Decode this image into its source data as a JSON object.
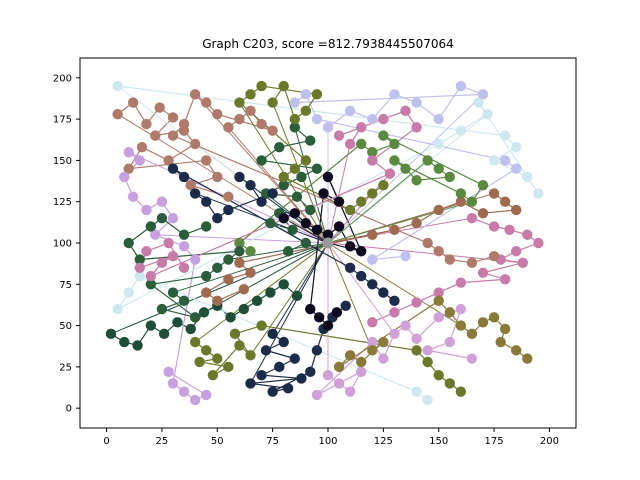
{
  "chart_data": {
    "type": "scatter",
    "title": "Graph C203, score =812.7938445507064",
    "xlabel": "",
    "ylabel": "",
    "xlim": [
      -12,
      212
    ],
    "ylim": [
      -12,
      212
    ],
    "x_ticks": [
      "0",
      "25",
      "50",
      "75",
      "100",
      "125",
      "150",
      "175",
      "200"
    ],
    "y_ticks": [
      "0",
      "25",
      "50",
      "75",
      "100",
      "125",
      "150",
      "175",
      "200"
    ],
    "grid": false,
    "legend": "none",
    "hub": {
      "x": 100,
      "y": 100,
      "color": "#999999"
    },
    "palette": [
      "#cfe8ef",
      "#c7a0e0",
      "#b07a6a",
      "#2a5e3a",
      "#6b7a2a",
      "#1c2b4a",
      "#c87aa8",
      "#0f0a20",
      "#a06a50",
      "#1e4d3a",
      "#c0c0ee",
      "#d0a0d8",
      "#8a7a3a",
      "#5a8a40"
    ],
    "series": [
      {
        "name": "",
        "color": "#2a5e3a",
        "points": [
          [
            85,
            170
          ],
          [
            92,
            162
          ],
          [
            78,
            158
          ],
          [
            70,
            150
          ],
          [
            95,
            145
          ],
          [
            88,
            140
          ],
          [
            80,
            135
          ],
          [
            72,
            130
          ],
          [
            86,
            128
          ],
          [
            92,
            120
          ],
          [
            78,
            118
          ],
          [
            84,
            108
          ],
          [
            74,
            112
          ],
          [
            90,
            100
          ],
          [
            82,
            95
          ]
        ]
      },
      {
        "name": "",
        "color": "#1c2b4a",
        "points": [
          [
            75,
            45
          ],
          [
            80,
            40
          ],
          [
            72,
            35
          ],
          [
            85,
            30
          ],
          [
            78,
            25
          ],
          [
            70,
            20
          ],
          [
            88,
            18
          ],
          [
            65,
            15
          ],
          [
            82,
            12
          ],
          [
            75,
            10
          ],
          [
            92,
            22
          ],
          [
            95,
            35
          ],
          [
            98,
            48
          ],
          [
            102,
            55
          ],
          [
            108,
            62
          ]
        ]
      },
      {
        "name": "",
        "color": "#c87aa8",
        "points": [
          [
            165,
            115
          ],
          [
            175,
            110
          ],
          [
            182,
            108
          ],
          [
            190,
            105
          ],
          [
            195,
            100
          ],
          [
            185,
            95
          ],
          [
            178,
            90
          ],
          [
            188,
            88
          ],
          [
            170,
            82
          ],
          [
            180,
            78
          ],
          [
            160,
            76
          ],
          [
            150,
            70
          ],
          [
            140,
            64
          ],
          [
            130,
            58
          ],
          [
            120,
            52
          ]
        ]
      },
      {
        "name": "",
        "color": "#b07a6a",
        "points": [
          [
            5,
            178
          ],
          [
            12,
            185
          ],
          [
            18,
            172
          ],
          [
            24,
            182
          ],
          [
            30,
            176
          ],
          [
            22,
            165
          ],
          [
            35,
            168
          ],
          [
            40,
            160
          ],
          [
            28,
            150
          ],
          [
            16,
            158
          ],
          [
            10,
            145
          ],
          [
            45,
            150
          ],
          [
            50,
            140
          ],
          [
            38,
            135
          ],
          [
            55,
            128
          ]
        ]
      },
      {
        "name": "",
        "color": "#6b7a2a",
        "points": [
          [
            40,
            40
          ],
          [
            45,
            35
          ],
          [
            50,
            30
          ],
          [
            42,
            28
          ],
          [
            55,
            25
          ],
          [
            48,
            20
          ],
          [
            60,
            38
          ],
          [
            65,
            32
          ],
          [
            58,
            45
          ],
          [
            70,
            50
          ],
          [
            140,
            35
          ],
          [
            145,
            28
          ],
          [
            150,
            20
          ],
          [
            155,
            15
          ],
          [
            160,
            10
          ]
        ]
      },
      {
        "name": "",
        "color": "#1e4d3a",
        "points": [
          [
            2,
            45
          ],
          [
            8,
            40
          ],
          [
            14,
            38
          ],
          [
            20,
            50
          ],
          [
            26,
            45
          ],
          [
            32,
            52
          ],
          [
            38,
            48
          ],
          [
            44,
            58
          ],
          [
            50,
            62
          ],
          [
            56,
            55
          ],
          [
            62,
            60
          ],
          [
            68,
            65
          ],
          [
            74,
            70
          ],
          [
            80,
            75
          ],
          [
            86,
            68
          ]
        ]
      },
      {
        "name": "",
        "color": "#c7a0e0",
        "points": [
          [
            10,
            155
          ],
          [
            15,
            150
          ],
          [
            8,
            140
          ],
          [
            12,
            128
          ],
          [
            18,
            120
          ],
          [
            25,
            125
          ],
          [
            30,
            115
          ],
          [
            22,
            105
          ],
          [
            35,
            98
          ],
          [
            40,
            90
          ],
          [
            30,
            15
          ],
          [
            35,
            10
          ],
          [
            40,
            5
          ],
          [
            45,
            8
          ],
          [
            28,
            22
          ]
        ]
      },
      {
        "name": "",
        "color": "#0f0a20",
        "points": [
          [
            80,
            115
          ],
          [
            85,
            118
          ],
          [
            90,
            112
          ],
          [
            95,
            108
          ],
          [
            100,
            105
          ],
          [
            105,
            110
          ],
          [
            110,
            98
          ],
          [
            115,
            95
          ],
          [
            100,
            140
          ],
          [
            105,
            125
          ],
          [
            98,
            130
          ],
          [
            92,
            60
          ],
          [
            96,
            55
          ],
          [
            100,
            50
          ],
          [
            104,
            58
          ]
        ]
      },
      {
        "name": "",
        "color": "#cfe8ef",
        "points": [
          [
            5,
            195
          ],
          [
            180,
            165
          ],
          [
            185,
            158
          ],
          [
            175,
            150
          ],
          [
            190,
            140
          ],
          [
            195,
            130
          ],
          [
            168,
            185
          ],
          [
            172,
            178
          ],
          [
            160,
            168
          ],
          [
            150,
            160
          ],
          [
            5,
            60
          ],
          [
            10,
            70
          ],
          [
            15,
            80
          ],
          [
            140,
            10
          ],
          [
            145,
            5
          ]
        ]
      },
      {
        "name": "",
        "color": "#a06a50",
        "points": [
          [
            175,
            130
          ],
          [
            180,
            125
          ],
          [
            185,
            120
          ],
          [
            170,
            118
          ],
          [
            160,
            125
          ],
          [
            150,
            120
          ],
          [
            140,
            112
          ],
          [
            130,
            108
          ],
          [
            120,
            105
          ],
          [
            60,
            88
          ],
          [
            65,
            82
          ],
          [
            55,
            78
          ],
          [
            45,
            70
          ],
          [
            50,
            65
          ],
          [
            62,
            72
          ]
        ]
      },
      {
        "name": "",
        "color": "#c0c0ee",
        "points": [
          [
            100,
            170
          ],
          [
            110,
            180
          ],
          [
            120,
            175
          ],
          [
            130,
            190
          ],
          [
            140,
            185
          ],
          [
            150,
            175
          ],
          [
            160,
            195
          ],
          [
            170,
            190
          ],
          [
            85,
            185
          ],
          [
            90,
            190
          ],
          [
            95,
            175
          ],
          [
            180,
            150
          ],
          [
            185,
            145
          ],
          [
            120,
            90
          ],
          [
            135,
            92
          ]
        ]
      },
      {
        "name": "",
        "color": "#d0a0d8",
        "points": [
          [
            100,
            20
          ],
          [
            105,
            15
          ],
          [
            110,
            10
          ],
          [
            115,
            22
          ],
          [
            95,
            8
          ],
          [
            120,
            40
          ],
          [
            125,
            30
          ],
          [
            130,
            45
          ],
          [
            135,
            50
          ],
          [
            140,
            42
          ],
          [
            150,
            55
          ],
          [
            160,
            60
          ],
          [
            155,
            40
          ],
          [
            145,
            35
          ],
          [
            165,
            30
          ]
        ]
      },
      {
        "name": "",
        "color": "#8a7a3a",
        "points": [
          [
            120,
            35
          ],
          [
            125,
            40
          ],
          [
            115,
            28
          ],
          [
            110,
            32
          ],
          [
            105,
            25
          ],
          [
            150,
            65
          ],
          [
            155,
            58
          ],
          [
            160,
            50
          ],
          [
            165,
            45
          ],
          [
            170,
            52
          ],
          [
            175,
            55
          ],
          [
            180,
            48
          ],
          [
            178,
            40
          ],
          [
            185,
            35
          ],
          [
            190,
            30
          ]
        ]
      },
      {
        "name": "",
        "color": "#5a8a40",
        "points": [
          [
            145,
            150
          ],
          [
            150,
            145
          ],
          [
            155,
            140
          ],
          [
            140,
            138
          ],
          [
            135,
            145
          ],
          [
            130,
            150
          ],
          [
            160,
            130
          ],
          [
            165,
            125
          ],
          [
            170,
            135
          ],
          [
            125,
            165
          ],
          [
            130,
            160
          ],
          [
            120,
            155
          ],
          [
            115,
            160
          ],
          [
            60,
            100
          ],
          [
            65,
            95
          ]
        ]
      },
      {
        "name": "",
        "color": "#2a5e3a",
        "points": [
          [
            30,
            70
          ],
          [
            35,
            65
          ],
          [
            25,
            60
          ],
          [
            40,
            55
          ],
          [
            20,
            75
          ],
          [
            45,
            80
          ],
          [
            50,
            85
          ],
          [
            55,
            90
          ],
          [
            60,
            95
          ],
          [
            15,
            90
          ],
          [
            10,
            100
          ],
          [
            20,
            110
          ],
          [
            25,
            115
          ],
          [
            35,
            105
          ],
          [
            45,
            110
          ]
        ]
      },
      {
        "name": "",
        "color": "#c87aa8",
        "points": [
          [
            110,
            160
          ],
          [
            115,
            170
          ],
          [
            105,
            165
          ],
          [
            125,
            175
          ],
          [
            135,
            180
          ],
          [
            140,
            170
          ],
          [
            120,
            150
          ],
          [
            128,
            142
          ],
          [
            20,
            80
          ],
          [
            25,
            88
          ],
          [
            30,
            92
          ],
          [
            15,
            85
          ],
          [
            18,
            95
          ],
          [
            28,
            100
          ],
          [
            35,
            85
          ]
        ]
      },
      {
        "name": "",
        "color": "#1c2b4a",
        "points": [
          [
            60,
            140
          ],
          [
            65,
            135
          ],
          [
            70,
            125
          ],
          [
            75,
            130
          ],
          [
            55,
            120
          ],
          [
            50,
            115
          ],
          [
            45,
            125
          ],
          [
            40,
            130
          ],
          [
            35,
            140
          ],
          [
            30,
            145
          ],
          [
            110,
            85
          ],
          [
            115,
            80
          ],
          [
            120,
            75
          ],
          [
            125,
            70
          ],
          [
            130,
            65
          ]
        ]
      },
      {
        "name": "",
        "color": "#b07a6a",
        "points": [
          [
            55,
            170
          ],
          [
            60,
            175
          ],
          [
            65,
            180
          ],
          [
            70,
            172
          ],
          [
            75,
            168
          ],
          [
            50,
            178
          ],
          [
            45,
            185
          ],
          [
            40,
            190
          ],
          [
            35,
            172
          ],
          [
            30,
            165
          ],
          [
            145,
            100
          ],
          [
            150,
            95
          ],
          [
            155,
            90
          ],
          [
            165,
            88
          ],
          [
            175,
            92
          ]
        ]
      },
      {
        "name": "",
        "color": "#6b7a2a",
        "points": [
          [
            75,
            185
          ],
          [
            80,
            195
          ],
          [
            85,
            175
          ],
          [
            90,
            180
          ],
          [
            95,
            190
          ],
          [
            70,
            195
          ],
          [
            65,
            190
          ],
          [
            60,
            185
          ],
          [
            90,
            150
          ],
          [
            85,
            145
          ],
          [
            80,
            140
          ],
          [
            110,
            120
          ],
          [
            115,
            125
          ],
          [
            120,
            130
          ],
          [
            125,
            135
          ]
        ]
      }
    ]
  }
}
